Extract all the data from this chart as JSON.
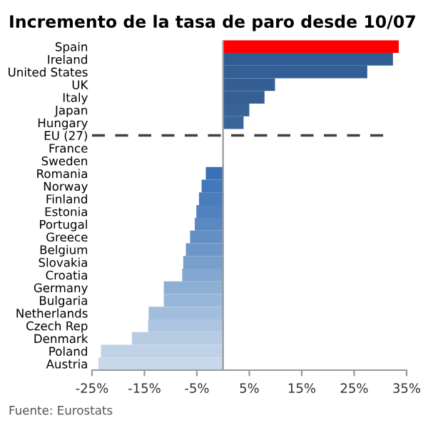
{
  "chart_data": {
    "type": "bar",
    "orientation": "horizontal",
    "title": "Incremento de la tasa de paro desde 10/07",
    "categories": [
      "Spain",
      "Ireland",
      "United States",
      "UK",
      "Italy",
      "Japan",
      "Hungary",
      "EU (27)",
      "France",
      "Sweden",
      "Romania",
      "Norway",
      "Finland",
      "Estonia",
      "Portugal",
      "Greece",
      "Belgium",
      "Slovakia",
      "Croatia",
      "Germany",
      "Bulgaria",
      "Netherlands",
      "Czech Rep",
      "Denmark",
      "Poland",
      "Austria"
    ],
    "values": [
      33.5,
      32.4,
      27.5,
      9.9,
      7.9,
      5.0,
      3.9,
      null,
      0,
      0,
      -3.3,
      -4.1,
      -4.6,
      -5.1,
      -5.4,
      -6.3,
      -7.1,
      -7.6,
      -7.8,
      -11.3,
      -11.3,
      -14.2,
      -14.3,
      -17.4,
      -23.3,
      -23.8
    ],
    "colors": [
      "#ff0000",
      "#2f5d92",
      "#325f95",
      "#355f94",
      "#365f94",
      "#386396",
      "#3a6599",
      "#3a6599",
      "#3a6599",
      "#3a6599",
      "#3b6fb6",
      "#4277ba",
      "#4a7dbc",
      "#5282be",
      "#5a88c0",
      "#648fc4",
      "#6e97c8",
      "#789fcc",
      "#83a7d0",
      "#8eafd4",
      "#98b6d8",
      "#a3bedc",
      "#adc5e0",
      "#b7cce3",
      "#c0d2e7",
      "#c8d8ea"
    ],
    "xlim": [
      -25,
      35
    ],
    "xticks": [
      {
        "value": -25,
        "label": "-25%"
      },
      {
        "value": -15,
        "label": "-15%"
      },
      {
        "value": -5,
        "label": "-5%"
      },
      {
        "value": 5,
        "label": "5%"
      },
      {
        "value": 15,
        "label": "15%"
      },
      {
        "value": 25,
        "label": "25%"
      },
      {
        "value": 35,
        "label": "35%"
      }
    ],
    "ref_lines": [
      {
        "axis": "y",
        "value": "EU (27)",
        "color": "#404040",
        "line_style": "dashed"
      }
    ],
    "grid": false,
    "annotations": [
      "Fuente: Eurostats"
    ]
  }
}
